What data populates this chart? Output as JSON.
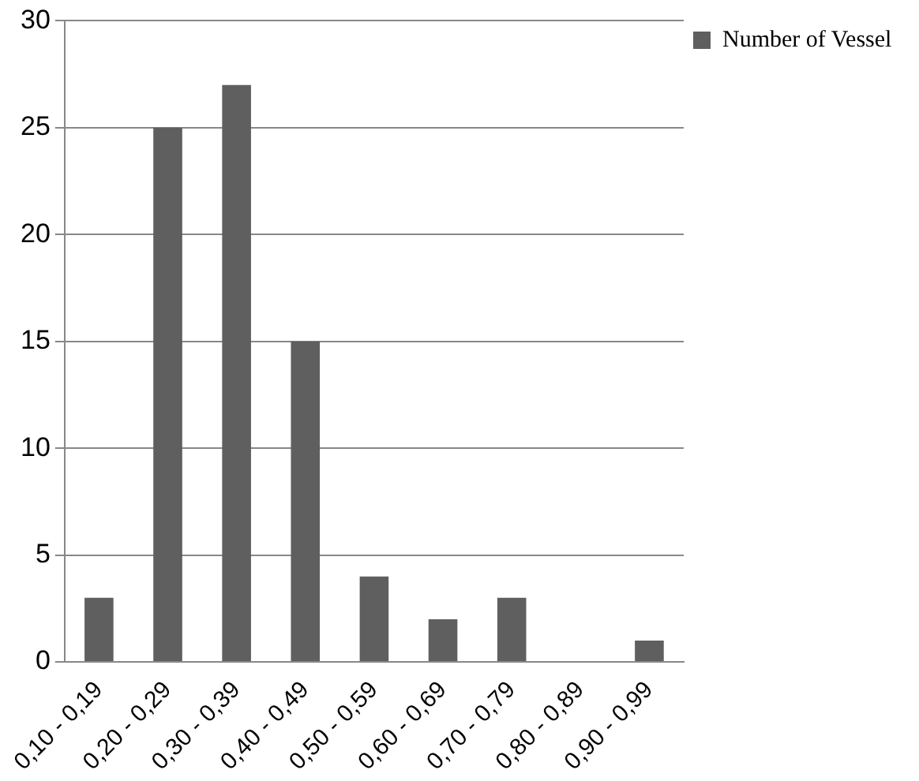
{
  "chart_data": {
    "type": "bar",
    "categories": [
      "0,10 - 0,19",
      "0,20 - 0,29",
      "0,30 - 0,39",
      "0,40 - 0,49",
      "0,50 - 0,59",
      "0,60 - 0,69",
      "0,70 - 0,79",
      "0,80 - 0,89",
      "0,90 - 0,99"
    ],
    "series": [
      {
        "name": "Number of Vessel",
        "color": "#5f5f5f",
        "values": [
          3,
          25,
          27,
          15,
          4,
          2,
          3,
          0,
          1
        ]
      }
    ],
    "ylim": [
      0,
      30
    ],
    "yticks": [
      0,
      5,
      10,
      15,
      20,
      25,
      30
    ],
    "grid": "y",
    "legend": "right"
  }
}
